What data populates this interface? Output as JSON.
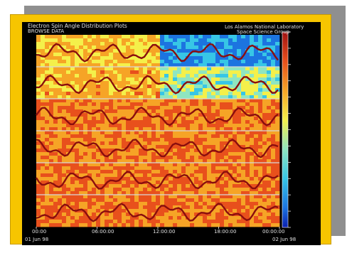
{
  "header": {
    "title": "Electron Spin Angle Distribution Plots",
    "subtitle": "BROWSE DATA",
    "org": "Los Alamos National Laboratory",
    "org_sub": "Space Science Group"
  },
  "colors": {
    "frame": "#f7c500",
    "shadow": "#8f8f8f",
    "background": "#000000"
  },
  "chart_data": {
    "type": "heatmap",
    "title": "Electron Spin Angle Distribution Plots",
    "panels": 6,
    "colormap": [
      "#0a1fb0",
      "#1c74e0",
      "#37c6e6",
      "#8fe6c0",
      "#f4f04a",
      "#f6a426",
      "#e8501c",
      "#a01212"
    ],
    "x_tick_labels": [
      "00:00",
      "06:00:00",
      "12:00:00",
      "18:00:00",
      "00:00:00"
    ],
    "x_footer_left": "01 Jun 98",
    "x_footer_right": "02 Jun 98"
  }
}
